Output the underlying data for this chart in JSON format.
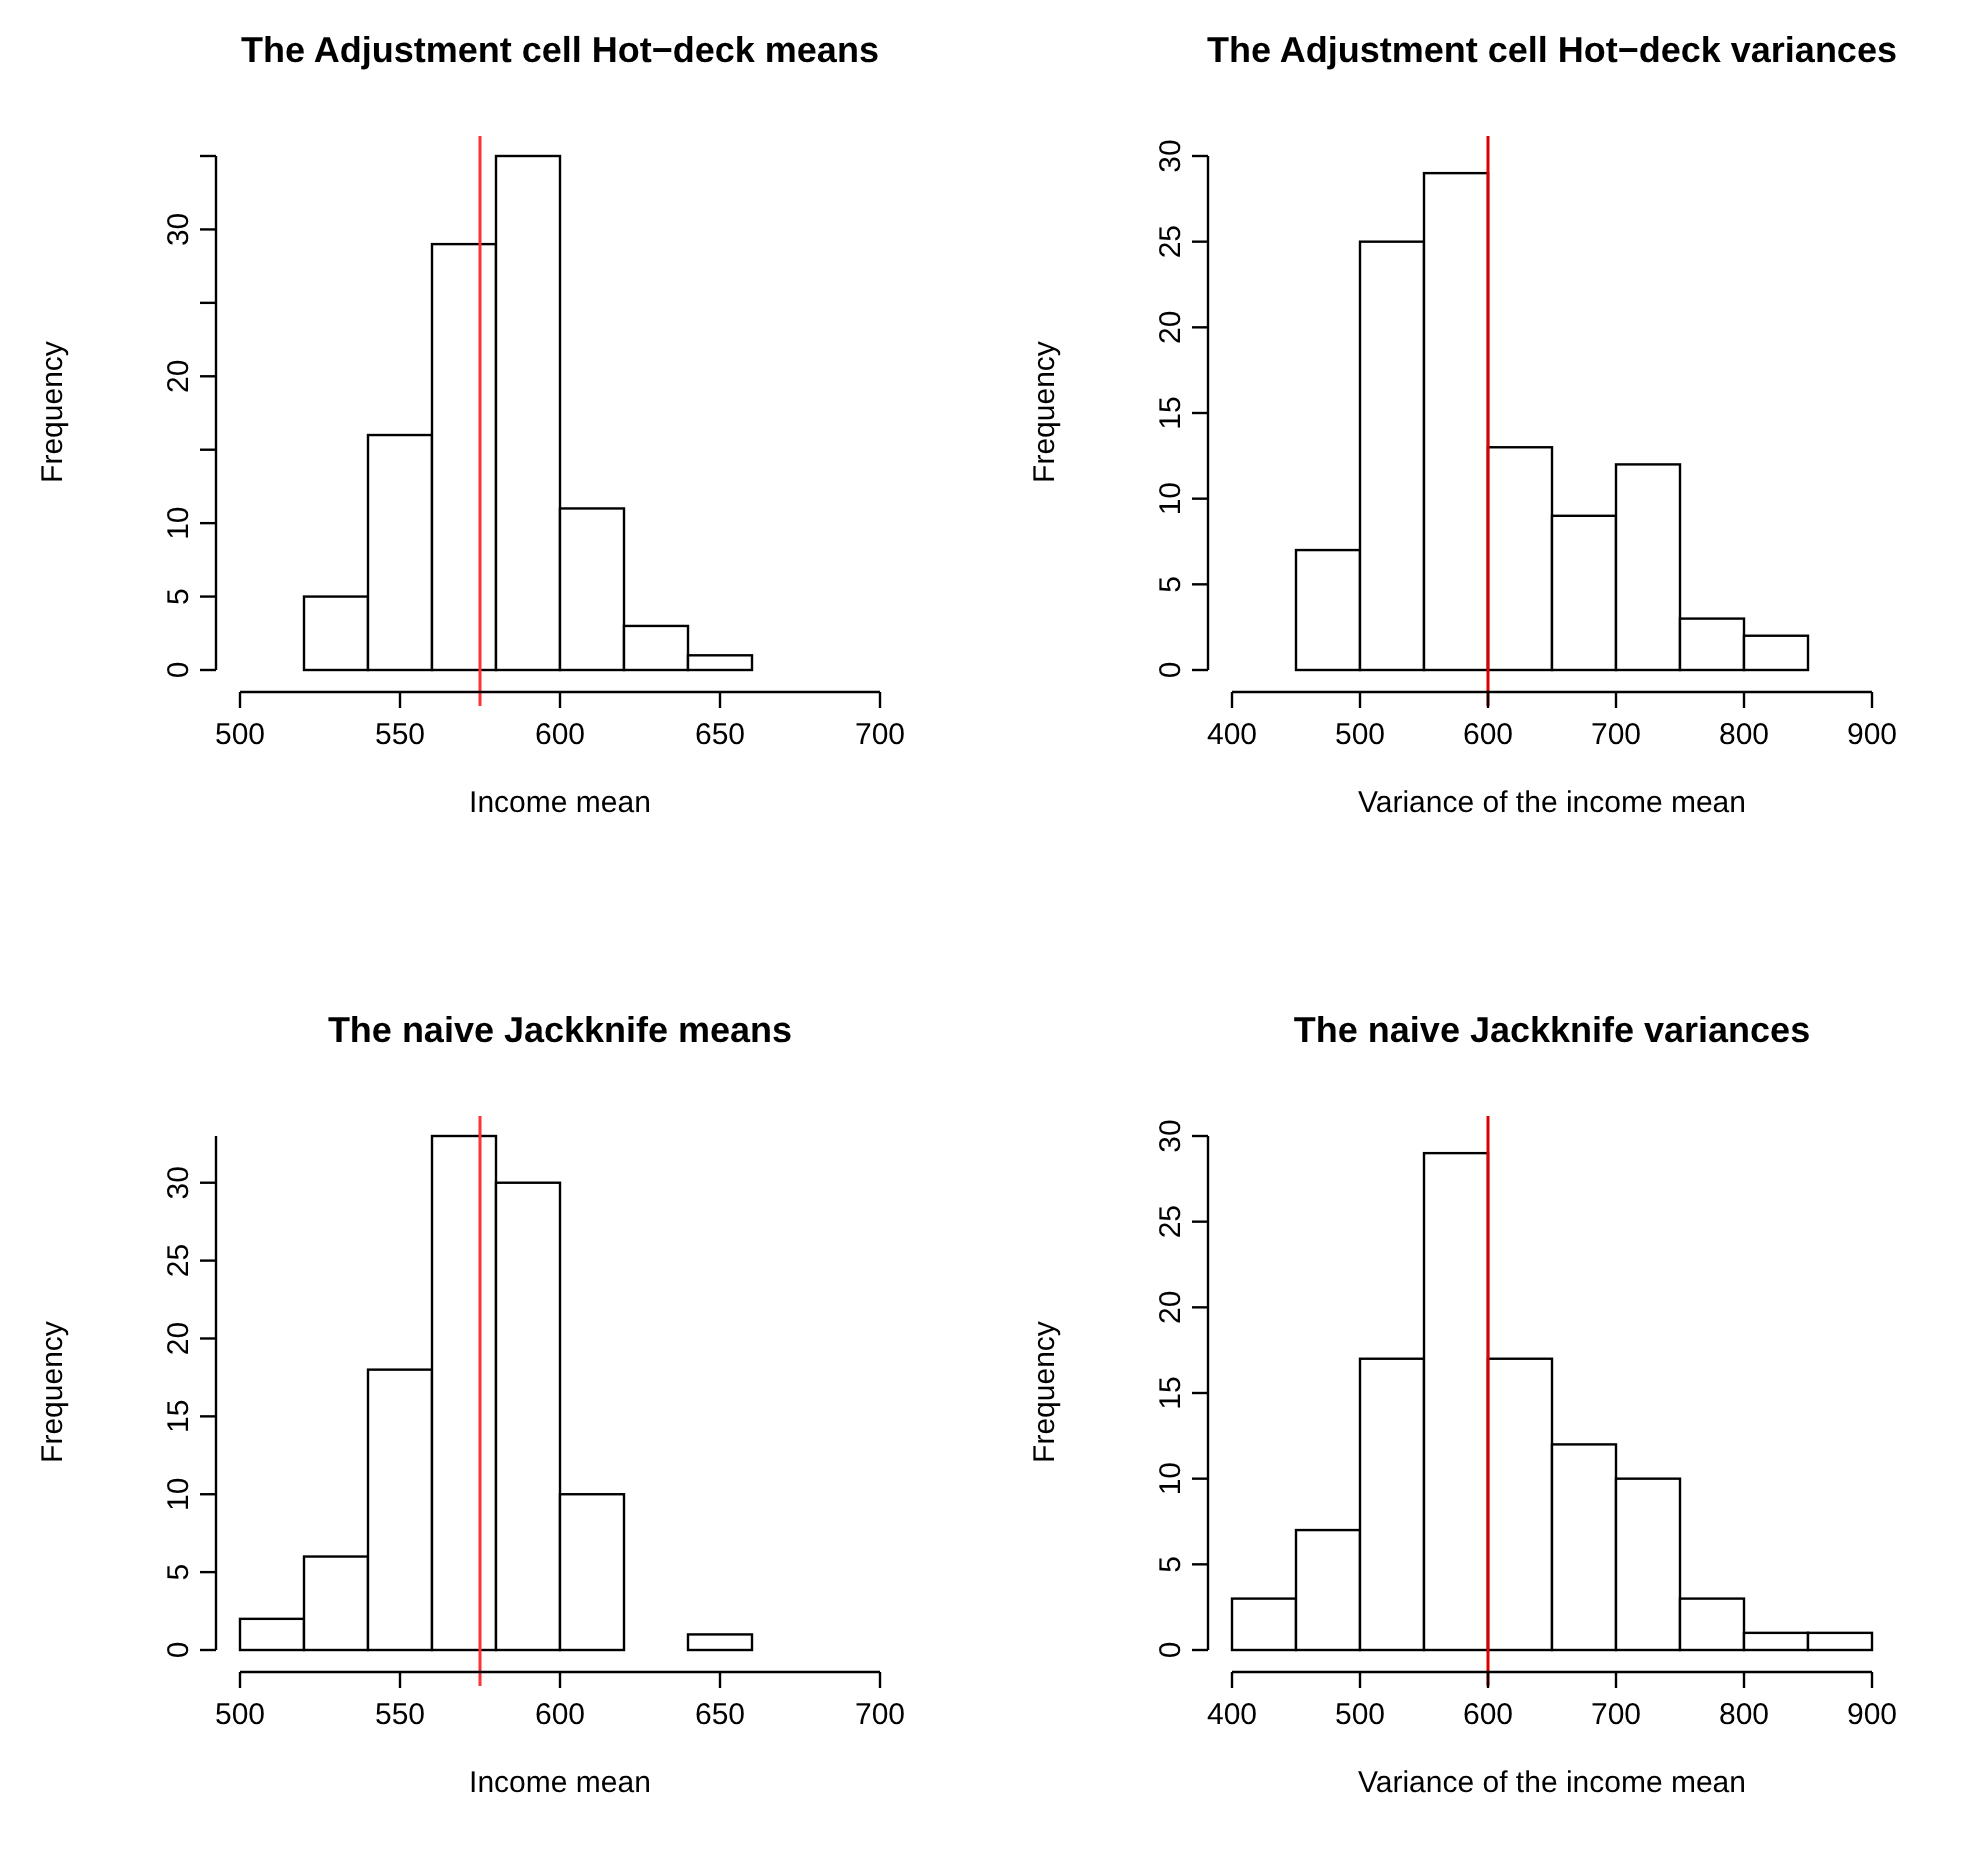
{
  "chart_data": [
    {
      "type": "histogram",
      "title": "The Adjustment cell Hot−deck means",
      "xlabel": "Income mean",
      "ylabel": "Frequency",
      "bins": [
        520,
        540,
        560,
        580,
        600,
        620,
        640,
        660
      ],
      "values": [
        5,
        16,
        29,
        35,
        11,
        3,
        1
      ],
      "color": "#ffffff",
      "xlim": [
        500,
        700
      ],
      "xticks": [
        500,
        550,
        600,
        650,
        700
      ],
      "ylim": [
        0,
        35
      ],
      "yticks": [
        0,
        5,
        10,
        {
          "value": 15,
          "label": null
        },
        20,
        {
          "value": 25,
          "label": null
        },
        30,
        {
          "value": 35,
          "label": null
        }
      ],
      "ref_lines": [
        {
          "axis": "x",
          "value": 575,
          "color": "#ff3333"
        }
      ]
    },
    {
      "type": "histogram",
      "title": "The Adjustment cell Hot−deck variances",
      "xlabel": "Variance of the income mean",
      "ylabel": "Frequency",
      "bins": [
        450,
        500,
        550,
        600,
        650,
        700,
        750,
        800,
        850
      ],
      "values": [
        7,
        25,
        29,
        13,
        9,
        12,
        3,
        2
      ],
      "color": "#ffffff",
      "xlim": [
        400,
        900
      ],
      "xticks": [
        400,
        500,
        600,
        700,
        800,
        900
      ],
      "ylim": [
        0,
        30
      ],
      "yticks": [
        0,
        5,
        10,
        15,
        20,
        25,
        30
      ],
      "ref_lines": [
        {
          "axis": "x",
          "value": 600,
          "color": "#dd0000"
        }
      ]
    },
    {
      "type": "histogram",
      "title": "The naive Jackknife means",
      "xlabel": "Income mean",
      "ylabel": "Frequency",
      "bins": [
        500,
        520,
        540,
        560,
        580,
        600,
        620,
        640,
        660
      ],
      "values": [
        2,
        6,
        18,
        33,
        30,
        10,
        0,
        1
      ],
      "color": "#ffffff",
      "xlim": [
        500,
        700
      ],
      "xticks": [
        500,
        550,
        600,
        650,
        700
      ],
      "ylim": [
        0,
        33
      ],
      "yticks": [
        0,
        5,
        10,
        15,
        20,
        25,
        30
      ],
      "ref_lines": [
        {
          "axis": "x",
          "value": 575,
          "color": "#ff3333"
        }
      ]
    },
    {
      "type": "histogram",
      "title": "The naive Jackknife variances",
      "xlabel": "Variance of the income mean",
      "ylabel": "Frequency",
      "bins": [
        400,
        450,
        500,
        550,
        600,
        650,
        700,
        750,
        800,
        850,
        900
      ],
      "values": [
        3,
        7,
        17,
        29,
        17,
        12,
        10,
        3,
        1,
        1
      ],
      "color": "#ffffff",
      "xlim": [
        400,
        900
      ],
      "xticks": [
        400,
        500,
        600,
        700,
        800,
        900
      ],
      "ylim": [
        0,
        30
      ],
      "yticks": [
        0,
        5,
        10,
        15,
        20,
        25,
        30
      ],
      "ref_lines": [
        {
          "axis": "x",
          "value": 600,
          "color": "#dd0000"
        }
      ]
    }
  ]
}
